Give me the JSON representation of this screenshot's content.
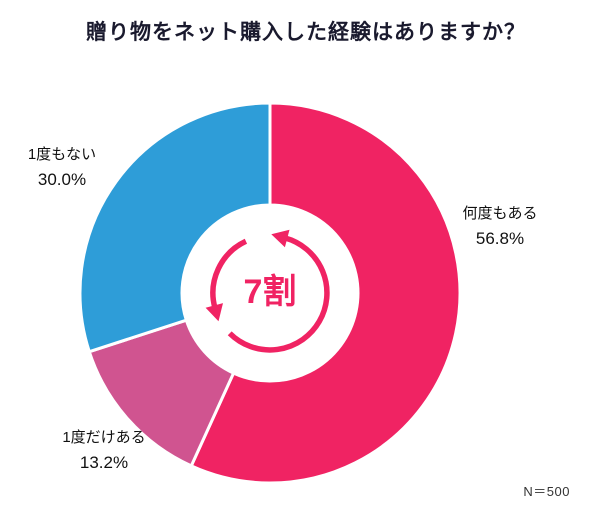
{
  "chart_data": {
    "type": "pie",
    "subtype": "donut",
    "title": "贈り物をネット購入した経験はありますか？",
    "start_angle": 0,
    "direction": "clockwise",
    "categories": [
      "何度もある",
      "1度だけある",
      "1度もない"
    ],
    "values": [
      56.8,
      13.2,
      30.0
    ],
    "value_labels": [
      "56.8%",
      "13.2%",
      "30.0%"
    ],
    "colors": [
      "#F02363",
      "#D05490",
      "#2E9DD8"
    ],
    "accent_color": "#F02363",
    "center_annotation": "7割",
    "note": "N＝500",
    "legend": "none",
    "background": "#FFFFFF"
  }
}
